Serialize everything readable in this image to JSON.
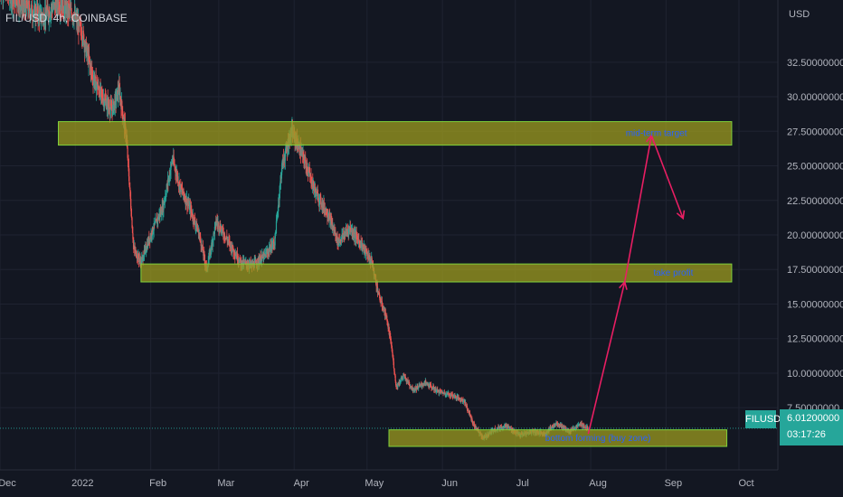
{
  "header": {
    "symbol_title": "FIL/USD, 4h, COINBASE",
    "currency": "USD"
  },
  "last_price": {
    "ticker": "FILUSD",
    "price": "6.01200000",
    "countdown": "03:17:26"
  },
  "colors": {
    "background": "#131722",
    "up": "#26a69a",
    "down": "#ef5350",
    "zone_fill": "#9c9b1f",
    "zone_border": "#7fd13b",
    "arrow": "#e91e63",
    "annotation_text": "#2962ff",
    "axis_text": "#b2b5be"
  },
  "chart_data": {
    "type": "candlestick",
    "title": "FIL/USD, 4h, COINBASE",
    "y_axis_label": "USD",
    "y_ticks": [
      "7.50000000",
      "10.00000000",
      "12.50000000",
      "15.00000000",
      "17.50000000",
      "20.00000000",
      "22.50000000",
      "25.00000000",
      "27.50000000",
      "30.00000000",
      "32.50000000"
    ],
    "y_range": [
      3.0,
      37.0
    ],
    "x_ticks": [
      "Dec",
      "2022",
      "Feb",
      "Mar",
      "Apr",
      "May",
      "Jun",
      "Jul",
      "Aug",
      "Sep",
      "Oct"
    ],
    "x_range": [
      "2021-12-01",
      "2022-10-17"
    ],
    "price_path": [
      {
        "d": "2021-12-01",
        "p": 38.0
      },
      {
        "d": "2021-12-06",
        "p": 37.2
      },
      {
        "d": "2021-12-12",
        "p": 36.4
      },
      {
        "d": "2021-12-19",
        "p": 35.8
      },
      {
        "d": "2021-12-25",
        "p": 36.8
      },
      {
        "d": "2021-12-31",
        "p": 36.0
      },
      {
        "d": "2022-01-04",
        "p": 34.5
      },
      {
        "d": "2022-01-08",
        "p": 31.5
      },
      {
        "d": "2022-01-12",
        "p": 30.0
      },
      {
        "d": "2022-01-16",
        "p": 29.0
      },
      {
        "d": "2022-01-19",
        "p": 30.5
      },
      {
        "d": "2022-01-22",
        "p": 27.0
      },
      {
        "d": "2022-01-25",
        "p": 19.0
      },
      {
        "d": "2022-01-28",
        "p": 18.0
      },
      {
        "d": "2022-02-01",
        "p": 20.0
      },
      {
        "d": "2022-02-06",
        "p": 22.0
      },
      {
        "d": "2022-02-10",
        "p": 25.5
      },
      {
        "d": "2022-02-13",
        "p": 23.5
      },
      {
        "d": "2022-02-17",
        "p": 22.0
      },
      {
        "d": "2022-02-21",
        "p": 20.0
      },
      {
        "d": "2022-02-24",
        "p": 17.5
      },
      {
        "d": "2022-02-28",
        "p": 21.0
      },
      {
        "d": "2022-03-05",
        "p": 19.5
      },
      {
        "d": "2022-03-10",
        "p": 18.0
      },
      {
        "d": "2022-03-15",
        "p": 17.8
      },
      {
        "d": "2022-03-20",
        "p": 18.5
      },
      {
        "d": "2022-03-24",
        "p": 19.5
      },
      {
        "d": "2022-03-27",
        "p": 25.0
      },
      {
        "d": "2022-03-31",
        "p": 27.5
      },
      {
        "d": "2022-04-05",
        "p": 25.5
      },
      {
        "d": "2022-04-10",
        "p": 23.0
      },
      {
        "d": "2022-04-15",
        "p": 21.5
      },
      {
        "d": "2022-04-19",
        "p": 19.5
      },
      {
        "d": "2022-04-24",
        "p": 20.5
      },
      {
        "d": "2022-04-28",
        "p": 19.5
      },
      {
        "d": "2022-05-03",
        "p": 18.0
      },
      {
        "d": "2022-05-06",
        "p": 15.5
      },
      {
        "d": "2022-05-09",
        "p": 14.0
      },
      {
        "d": "2022-05-11",
        "p": 12.0
      },
      {
        "d": "2022-05-13",
        "p": 9.0
      },
      {
        "d": "2022-05-16",
        "p": 9.8
      },
      {
        "d": "2022-05-20",
        "p": 8.8
      },
      {
        "d": "2022-05-25",
        "p": 9.3
      },
      {
        "d": "2022-05-30",
        "p": 8.7
      },
      {
        "d": "2022-06-05",
        "p": 8.4
      },
      {
        "d": "2022-06-10",
        "p": 8.0
      },
      {
        "d": "2022-06-14",
        "p": 6.2
      },
      {
        "d": "2022-06-18",
        "p": 5.3
      },
      {
        "d": "2022-06-22",
        "p": 5.9
      },
      {
        "d": "2022-06-27",
        "p": 6.2
      },
      {
        "d": "2022-07-03",
        "p": 5.5
      },
      {
        "d": "2022-07-08",
        "p": 5.8
      },
      {
        "d": "2022-07-13",
        "p": 5.6
      },
      {
        "d": "2022-07-18",
        "p": 6.4
      },
      {
        "d": "2022-07-23",
        "p": 5.8
      },
      {
        "d": "2022-07-28",
        "p": 6.3
      },
      {
        "d": "2022-07-31",
        "p": 6.0
      }
    ],
    "zones": [
      {
        "label": "mid-term target",
        "from": "2021-12-25",
        "to": "2022-09-28",
        "y_low": 26.5,
        "y_high": 28.2
      },
      {
        "label": "take profit",
        "from": "2022-01-28",
        "to": "2022-09-28",
        "y_low": 16.6,
        "y_high": 17.9
      },
      {
        "label": "bottom forming (buy zone)",
        "from": "2022-05-10",
        "to": "2022-09-26",
        "y_low": 4.7,
        "y_high": 5.9
      }
    ],
    "annotations": [
      "mid-term target",
      "take profit",
      "bottom forming (buy zone)"
    ],
    "projection_path": [
      {
        "d": "2022-07-31",
        "p": 5.6
      },
      {
        "d": "2022-08-15",
        "p": 16.6
      },
      {
        "d": "2022-08-26",
        "p": 27.2
      },
      {
        "d": "2022-09-08",
        "p": 21.2
      }
    ]
  }
}
